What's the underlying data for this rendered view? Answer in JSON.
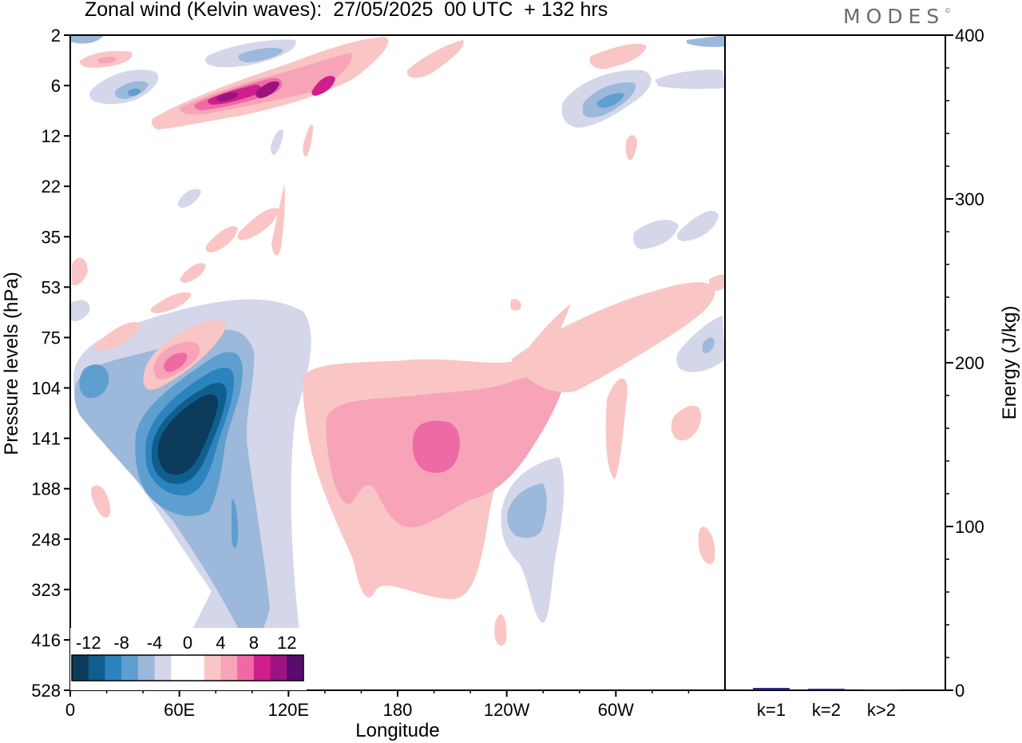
{
  "chart_data": [
    {
      "type": "heatmap",
      "title": "Zonal wind (Kelvin waves):  27/05/2025  00 UTC  + 132 hrs",
      "xlabel": "Longitude",
      "ylabel": "Pressure levels (hPa)",
      "x_ticks": [
        "0",
        "60E",
        "120E",
        "180",
        "120W",
        "60W"
      ],
      "y_levels": [
        "2",
        "6",
        "12",
        "22",
        "35",
        "53",
        "75",
        "104",
        "141",
        "188",
        "248",
        "323",
        "416",
        "528"
      ],
      "colorbar": {
        "tick_labels": [
          "-12",
          "-8",
          "-4",
          "0",
          "4",
          "8",
          "12"
        ],
        "colors": [
          "#0d3b5c",
          "#0f5e8e",
          "#2b84bd",
          "#5f9fcf",
          "#9cb8db",
          "#d4d6ea",
          "#ffffff",
          "#ffffff",
          "#f9c6c5",
          "#f7a3b8",
          "#ee6aa5",
          "#cf1f8c",
          "#9c1380",
          "#5a0b6e"
        ]
      },
      "features": [
        {
          "sign": "negative",
          "level": -16,
          "lon_range": [
            48,
            78
          ],
          "p_range": [
            110,
            170
          ]
        },
        {
          "sign": "negative",
          "level": -8,
          "lon_range": [
            40,
            95
          ],
          "p_range": [
            90,
            230
          ]
        },
        {
          "sign": "negative",
          "level": -4,
          "lon_range": [
            30,
            125
          ],
          "p_range": [
            70,
            450
          ]
        },
        {
          "sign": "positive",
          "level": 6,
          "lon_range": [
            175,
            210
          ],
          "p_range": [
            120,
            170
          ]
        },
        {
          "sign": "positive",
          "level": 4,
          "lon_range": [
            130,
            245
          ],
          "p_range": [
            100,
            330
          ]
        },
        {
          "sign": "positive",
          "level": 8,
          "lon_range": [
            60,
            110
          ],
          "p_range": [
            6,
            8
          ]
        },
        {
          "sign": "positive",
          "level": 6,
          "lon_range": [
            50,
            65
          ],
          "p_range": [
            85,
            115
          ]
        },
        {
          "sign": "negative",
          "level": -6,
          "lon_range": [
            280,
            305
          ],
          "p_range": [
            5,
            9
          ]
        },
        {
          "sign": "negative",
          "level": -4,
          "lon_range": [
            238,
            258
          ],
          "p_range": [
            170,
            260
          ]
        }
      ]
    },
    {
      "type": "bar",
      "categories": [
        "k=1",
        "k=2",
        "k>2"
      ],
      "values": [
        1.4,
        0.9,
        0.5
      ],
      "ylabel": "Energy (J/kg)",
      "ylim": [
        0,
        400
      ],
      "y_ticks": [
        0,
        100,
        200,
        300,
        400
      ],
      "bar_color": "#1c1c7a"
    }
  ],
  "logo": {
    "text": "MODES",
    "mark": "©"
  }
}
